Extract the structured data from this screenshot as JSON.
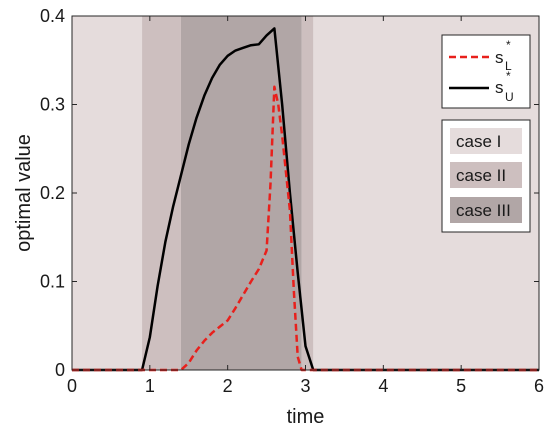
{
  "chart_data": {
    "type": "line",
    "xlabel": "time",
    "ylabel": "optimal value",
    "xlim": [
      0,
      6
    ],
    "ylim": [
      0,
      0.4
    ],
    "xticks": [
      0,
      1,
      2,
      3,
      4,
      5,
      6
    ],
    "yticks": [
      0,
      0.1,
      0.2,
      0.3,
      0.4
    ],
    "xtick_labels": [
      "0",
      "1",
      "2",
      "3",
      "4",
      "5",
      "6"
    ],
    "ytick_labels": [
      "0",
      "0.1",
      "0.2",
      "0.3",
      "0.4"
    ],
    "grid": false,
    "legend_placement": "top-right",
    "regions": [
      {
        "name": "case I",
        "x_ranges": [
          [
            0,
            0.9
          ],
          [
            3.1,
            6
          ]
        ],
        "color": "#e5dcdc"
      },
      {
        "name": "case II",
        "x_ranges": [
          [
            0.9,
            1.4
          ],
          [
            2.95,
            3.1
          ]
        ],
        "color": "#cdbfbf"
      },
      {
        "name": "case III",
        "x_ranges": [
          [
            1.4,
            2.95
          ]
        ],
        "color": "#b1a6a6"
      }
    ],
    "series": [
      {
        "name": "s_U*",
        "label_main": "s",
        "label_sub": "U",
        "label_sup": "*",
        "color": "#000000",
        "style": "solid",
        "x": [
          0,
          0.9,
          1.0,
          1.1,
          1.2,
          1.3,
          1.4,
          1.5,
          1.6,
          1.7,
          1.8,
          1.9,
          2.0,
          2.1,
          2.2,
          2.3,
          2.4,
          2.5,
          2.6,
          2.7,
          2.8,
          2.9,
          3.0,
          3.1,
          6
        ],
        "y": [
          0,
          0,
          0.037,
          0.095,
          0.145,
          0.185,
          0.22,
          0.255,
          0.285,
          0.31,
          0.33,
          0.345,
          0.355,
          0.361,
          0.364,
          0.367,
          0.368,
          0.378,
          0.386,
          0.3,
          0.2,
          0.11,
          0.027,
          0,
          0
        ]
      },
      {
        "name": "s_L*",
        "label_main": "s",
        "label_sub": "L",
        "label_sup": "*",
        "color": "#e8201c",
        "style": "dashed",
        "x": [
          0,
          1.4,
          1.5,
          1.6,
          1.7,
          1.8,
          1.9,
          2.0,
          2.1,
          2.2,
          2.3,
          2.4,
          2.5,
          2.55,
          2.6,
          2.65,
          2.7,
          2.8,
          2.85,
          2.9,
          2.95,
          3.0,
          6
        ],
        "y": [
          0,
          0,
          0.008,
          0.022,
          0.033,
          0.042,
          0.049,
          0.056,
          0.07,
          0.085,
          0.1,
          0.114,
          0.135,
          0.21,
          0.32,
          0.3,
          0.265,
          0.18,
          0.09,
          0.015,
          0,
          0,
          0
        ]
      }
    ]
  }
}
